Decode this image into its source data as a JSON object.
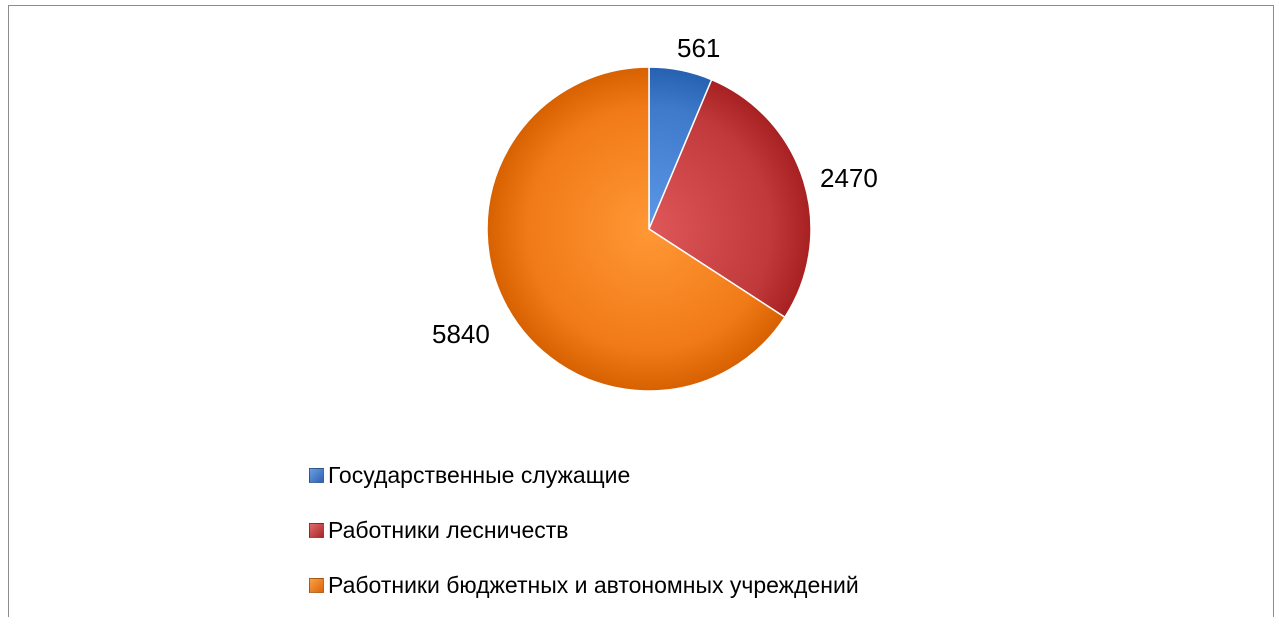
{
  "chart_data": {
    "type": "pie",
    "title": "",
    "legend_position": "bottom",
    "slices": [
      {
        "label": "Государственные служащие",
        "value": 561,
        "value_label": "561",
        "color": "#3f79c9"
      },
      {
        "label": "Работники лесничеств",
        "value": 2470,
        "value_label": "2470",
        "color": "#c0393b"
      },
      {
        "label": "Работники бюджетных и автономных учреждений",
        "value": 5840,
        "value_label": "5840",
        "color": "#f07a17"
      }
    ]
  }
}
